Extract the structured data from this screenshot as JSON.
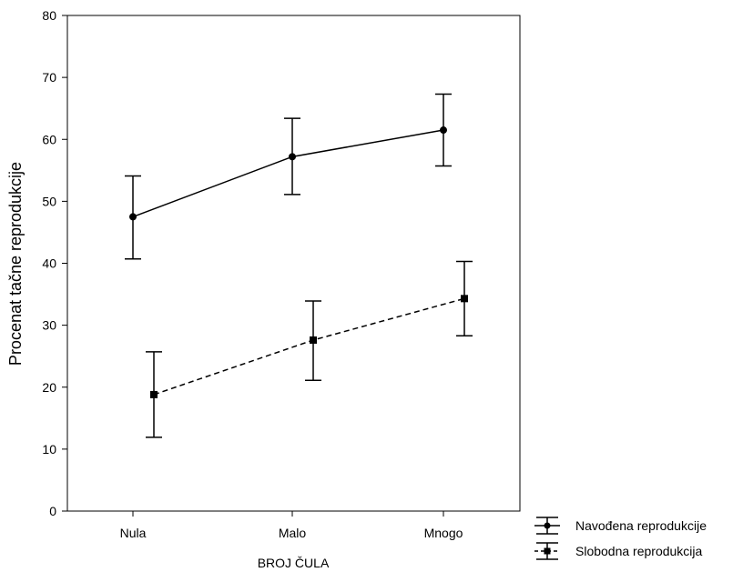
{
  "chart_data": {
    "type": "line",
    "categories": [
      "Nula",
      "Malo",
      "Mnogo"
    ],
    "xlabel": "BROJ ČULA",
    "ylabel": "Procenat tačne reprodukcije",
    "ylim": [
      0,
      80
    ],
    "yticks": [
      0,
      10,
      20,
      30,
      40,
      50,
      60,
      70,
      80
    ],
    "error_bars": true,
    "legend_position": "bottom-right",
    "series": [
      {
        "name": "Navođena reprodukcije",
        "values": [
          47.5,
          57.2,
          61.5
        ],
        "lower": [
          40.7,
          51.1,
          55.7
        ],
        "upper": [
          54.1,
          63.4,
          67.3
        ],
        "marker": "circle",
        "line_style": "solid",
        "color": "#000000"
      },
      {
        "name": "Slobodna reprodukcija",
        "values": [
          18.8,
          27.6,
          34.3
        ],
        "lower": [
          11.9,
          21.1,
          28.3
        ],
        "upper": [
          25.7,
          33.9,
          40.3
        ],
        "marker": "square",
        "line_style": "dashed",
        "color": "#000000"
      }
    ]
  }
}
